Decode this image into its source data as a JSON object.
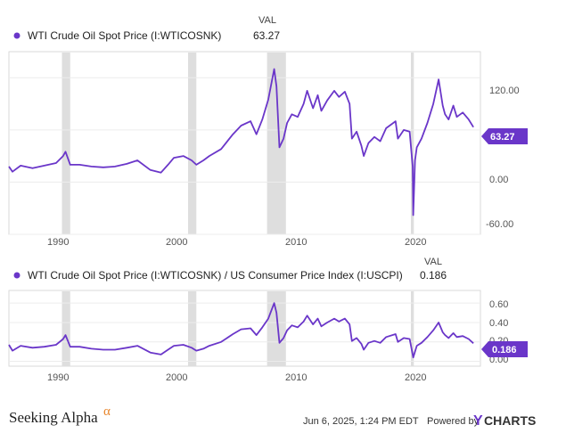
{
  "colors": {
    "series": "#6a36c9",
    "recession": "#dedede",
    "frame": "#d9d9d9",
    "grid": "#ececec"
  },
  "footer": {
    "brand": "Seeking Alpha",
    "brand_symbol": "α",
    "timestamp": "Jun 6, 2025, 1:24 PM EDT",
    "powered_by": "Powered by",
    "ycharts": "YCHARTS",
    "ycharts_y": "Y",
    "ycharts_rest": "CHARTS"
  },
  "chart_data": [
    {
      "type": "line",
      "legend": {
        "header": "VAL",
        "name": "WTI Crude Oil Spot Price (I:WTICOSNK)",
        "value": "63.27"
      },
      "series": [
        {
          "name": "WTI Crude Oil Spot Price (I:WTICOSNK)",
          "color": "#6a36c9",
          "x": [
            1986.0,
            1986.3,
            1987.0,
            1988.0,
            1989.0,
            1990.0,
            1990.6,
            1990.8,
            1991.2,
            1992.0,
            1993.0,
            1994.0,
            1995.0,
            1996.0,
            1996.9,
            1998.0,
            1998.9,
            1999.5,
            2000.0,
            2000.8,
            2001.5,
            2001.9,
            2002.5,
            2003.0,
            2004.0,
            2005.0,
            2005.7,
            2006.5,
            2007.0,
            2007.5,
            2008.0,
            2008.5,
            2008.7,
            2008.95,
            2009.3,
            2009.6,
            2010.0,
            2010.5,
            2011.0,
            2011.3,
            2011.8,
            2012.2,
            2012.5,
            2013.0,
            2013.6,
            2014.0,
            2014.5,
            2014.9,
            2015.1,
            2015.5,
            2015.9,
            2016.1,
            2016.5,
            2017.0,
            2017.5,
            2018.0,
            2018.8,
            2019.0,
            2019.5,
            2020.0,
            2020.25,
            2020.3,
            2020.45,
            2020.6,
            2021.0,
            2021.5,
            2022.0,
            2022.45,
            2022.8,
            2023.0,
            2023.3,
            2023.7,
            2024.0,
            2024.5,
            2025.0,
            2025.4
          ],
          "values": [
            18,
            12,
            19,
            16,
            19,
            22,
            30,
            35,
            20,
            20,
            18,
            17,
            18,
            21,
            25,
            14,
            11,
            20,
            28,
            30,
            25,
            20,
            25,
            30,
            38,
            55,
            65,
            70,
            55,
            72,
            95,
            130,
            110,
            40,
            50,
            68,
            78,
            75,
            90,
            105,
            85,
            100,
            82,
            94,
            105,
            98,
            104,
            90,
            50,
            58,
            42,
            30,
            45,
            52,
            47,
            62,
            70,
            50,
            60,
            58,
            18,
            -38,
            25,
            40,
            50,
            68,
            90,
            118,
            88,
            78,
            72,
            88,
            75,
            80,
            72,
            63.27
          ]
        }
      ],
      "x_ticks": [
        "1990",
        "2000",
        "2010",
        "2020"
      ],
      "y_ticks": [
        "120.00",
        "0.00",
        "-60.00"
      ],
      "y_grid": [
        120,
        60,
        0,
        -60
      ],
      "xlim": [
        1986,
        2026
      ],
      "ylim": [
        -60,
        150
      ],
      "last_value_label": "63.27",
      "recessions": [
        [
          1990.5,
          1991.2
        ],
        [
          2001.2,
          2001.9
        ],
        [
          2007.9,
          2009.5
        ],
        [
          2020.1,
          2020.35
        ]
      ]
    },
    {
      "type": "line",
      "legend": {
        "header": "VAL",
        "name": "WTI Crude Oil Spot Price (I:WTICOSNK) / US Consumer Price Index (I:USCPI)",
        "value": "0.186"
      },
      "series": [
        {
          "name": "WTI Crude Oil Spot Price (I:WTICOSNK) / US Consumer Price Index (I:USCPI)",
          "color": "#6a36c9",
          "x": [
            1986.0,
            1986.3,
            1987.0,
            1988.0,
            1989.0,
            1990.0,
            1990.6,
            1990.8,
            1991.2,
            1992.0,
            1993.0,
            1994.0,
            1995.0,
            1996.0,
            1996.9,
            1998.0,
            1998.9,
            1999.5,
            2000.0,
            2000.8,
            2001.5,
            2001.9,
            2002.5,
            2003.0,
            2004.0,
            2005.0,
            2005.7,
            2006.5,
            2007.0,
            2007.5,
            2008.0,
            2008.5,
            2008.7,
            2008.95,
            2009.3,
            2009.6,
            2010.0,
            2010.5,
            2011.0,
            2011.3,
            2011.8,
            2012.2,
            2012.5,
            2013.0,
            2013.6,
            2014.0,
            2014.5,
            2014.9,
            2015.1,
            2015.5,
            2015.9,
            2016.1,
            2016.5,
            2017.0,
            2017.5,
            2018.0,
            2018.8,
            2019.0,
            2019.5,
            2020.0,
            2020.25,
            2020.3,
            2020.45,
            2020.6,
            2021.0,
            2021.5,
            2022.0,
            2022.45,
            2022.8,
            2023.0,
            2023.3,
            2023.7,
            2024.0,
            2024.5,
            2025.0,
            2025.4
          ],
          "values": [
            0.17,
            0.11,
            0.16,
            0.14,
            0.15,
            0.17,
            0.23,
            0.27,
            0.15,
            0.15,
            0.13,
            0.12,
            0.12,
            0.14,
            0.16,
            0.09,
            0.07,
            0.12,
            0.16,
            0.17,
            0.14,
            0.11,
            0.13,
            0.16,
            0.2,
            0.28,
            0.33,
            0.34,
            0.27,
            0.35,
            0.44,
            0.6,
            0.5,
            0.19,
            0.24,
            0.32,
            0.37,
            0.35,
            0.41,
            0.47,
            0.38,
            0.44,
            0.36,
            0.4,
            0.44,
            0.41,
            0.44,
            0.38,
            0.21,
            0.24,
            0.18,
            0.12,
            0.19,
            0.21,
            0.19,
            0.25,
            0.28,
            0.2,
            0.24,
            0.23,
            0.07,
            0.04,
            0.1,
            0.16,
            0.19,
            0.25,
            0.32,
            0.4,
            0.3,
            0.27,
            0.24,
            0.29,
            0.25,
            0.26,
            0.23,
            0.186
          ]
        }
      ],
      "x_ticks": [
        "1990",
        "2000",
        "2010",
        "2020"
      ],
      "y_ticks": [
        "0.60",
        "0.40",
        "0.20",
        "0.00"
      ],
      "y_grid": [
        0.6,
        0.4,
        0.2,
        0.0
      ],
      "xlim": [
        1986,
        2026
      ],
      "ylim": [
        -0.05,
        0.73
      ],
      "last_value_label": "0.186",
      "recessions": [
        [
          1990.5,
          1991.2
        ],
        [
          2001.2,
          2001.9
        ],
        [
          2007.9,
          2009.5
        ],
        [
          2020.1,
          2020.35
        ]
      ]
    }
  ]
}
